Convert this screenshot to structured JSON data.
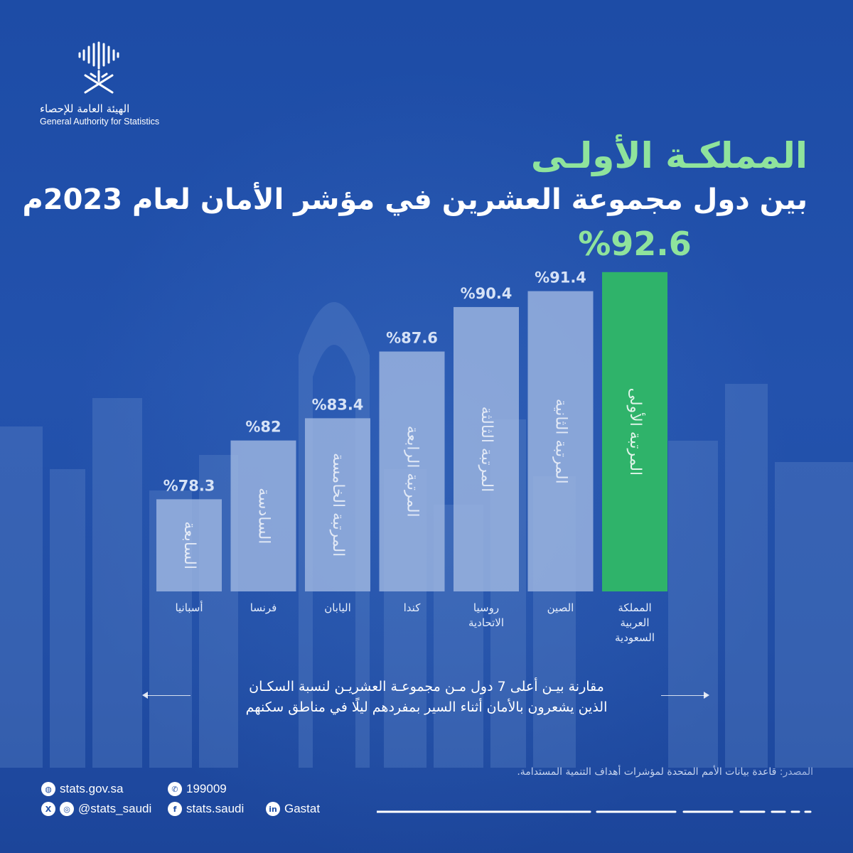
{
  "logo": {
    "name_ar": "الهيئة العامة للإحصاء",
    "name_en": "General Authority for Statistics"
  },
  "title": {
    "line1": "المملكـة الأولـى",
    "line2": "بين دول مجموعة العشرين في مؤشر الأمان لعام 2023م"
  },
  "chart_data": {
    "type": "bar",
    "categories": [
      "أسبانيا",
      "فرنسا",
      "اليابان",
      "كندا",
      "روسيا الاتحادية",
      "الصين",
      "المملكة العربية السعودية"
    ],
    "category_lines": [
      [
        "أسبانيا"
      ],
      [
        "فرنسا"
      ],
      [
        "اليابان"
      ],
      [
        "كندا"
      ],
      [
        "روسيا",
        "الاتحادية"
      ],
      [
        "الصين"
      ],
      [
        "المملكة",
        "العربية",
        "السعودية"
      ]
    ],
    "values": [
      78.3,
      82,
      83.4,
      87.6,
      90.4,
      91.4,
      92.6
    ],
    "value_labels": [
      "%78.3",
      "%82",
      "%83.4",
      "%87.6",
      "%90.4",
      "%91.4",
      "%92.6"
    ],
    "rank_labels": [
      "السابعة",
      "السادسة",
      "المرتبة الخامسة",
      "المرتبة الرابعة",
      "المرتبة الثالثة",
      "المرتبة الثانية",
      "المرتبة الأولى"
    ],
    "ylim": [
      70,
      95
    ],
    "colors": {
      "bar": "#9eb6e0",
      "highlight": "#2fb36a",
      "label": "#d6e2f6",
      "highlight_label": "#8fe39c"
    }
  },
  "note": {
    "line1": "مقارنة بيـن أعلى 7 دول مـن مجموعـة العشريـن لنسبة السكـان",
    "line2": "الذين يشعرون بالأمان أثناء السير بمفردهم ليلًا في مناطق سكنهم"
  },
  "source": {
    "label": "المصدر:",
    "text": "قاعدة بيانات الأمم المتحدة لمؤشرات أهداف التنمية المستدامة."
  },
  "contacts": {
    "website": "stats.gov.sa",
    "phone": "199009",
    "x_instagram": "@stats_saudi",
    "facebook": "stats.saudi",
    "linkedin": "Gastat",
    "icons": [
      "globe-icon",
      "phone-icon",
      "x-icon",
      "instagram-icon",
      "facebook-icon",
      "linkedin-icon"
    ]
  }
}
